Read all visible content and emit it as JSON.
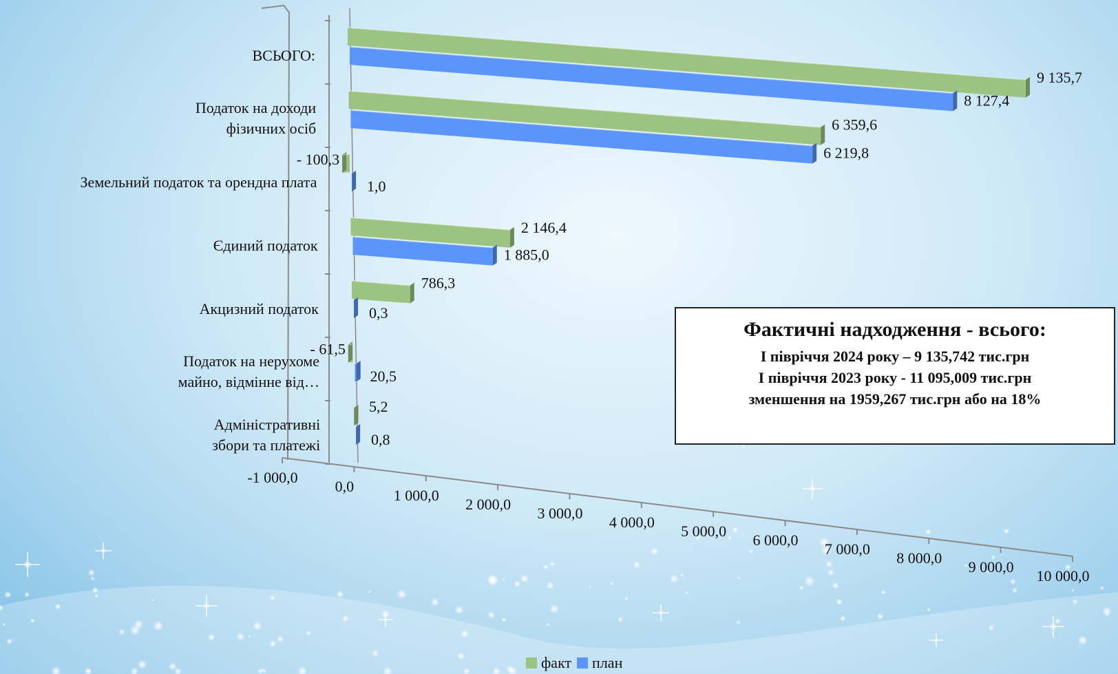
{
  "chart_data": {
    "type": "bar",
    "orientation": "horizontal",
    "categories": [
      "ВСЬОГО:",
      [
        "Податок на доходи",
        "фізичних осіб"
      ],
      "Земельний податок та орендна плата",
      "Єдиний податок",
      "Акцизний податок",
      [
        "Податок на нерухоме",
        "майно, відмінне від…"
      ],
      [
        "Адміністративні",
        "збори та платежі"
      ]
    ],
    "series": [
      {
        "name": "факт",
        "color": "#9dc383",
        "values": [
          9135.7,
          6359.6,
          -100.3,
          2146.4,
          786.3,
          -61.5,
          5.2
        ],
        "labels": [
          "9 135,7",
          "6 359,6",
          "- 100,3",
          "2 146,4",
          "786,3",
          "- 61,5",
          "5,2"
        ]
      },
      {
        "name": "план",
        "color": "#5b95f9",
        "values": [
          8127.4,
          6219.8,
          1.0,
          1885.0,
          0.3,
          20.5,
          0.8
        ],
        "labels": [
          "8 127,4",
          "6 219,8",
          "1,0",
          "1 885,0",
          "0,3",
          "20,5",
          "0,8"
        ]
      }
    ],
    "xlim": [
      -1000,
      10000
    ],
    "xticks": [
      "-1 000,0",
      "0,0",
      "1 000,0",
      "2 000,0",
      "3 000,0",
      "4 000,0",
      "5 000,0",
      "6 000,0",
      "7 000,0",
      "8 000,0",
      "9 000,0",
      "10 000,0"
    ],
    "legend_position": "bottom",
    "style": "3d-perspective"
  },
  "infobox": {
    "title": "Фактичні надходження - всього:",
    "line1": "І півріччя  2024 року  – 9 135,742 тис.грн",
    "line2": "І півріччя  2023 року  - 11 095,009 тис.грн",
    "line3": "зменшення  на 1959,267 тис.грн або на 18%"
  },
  "legend": {
    "fact": "факт",
    "plan": "план"
  },
  "colors": {
    "fact": "#9dc383",
    "plan": "#5b95f9"
  }
}
